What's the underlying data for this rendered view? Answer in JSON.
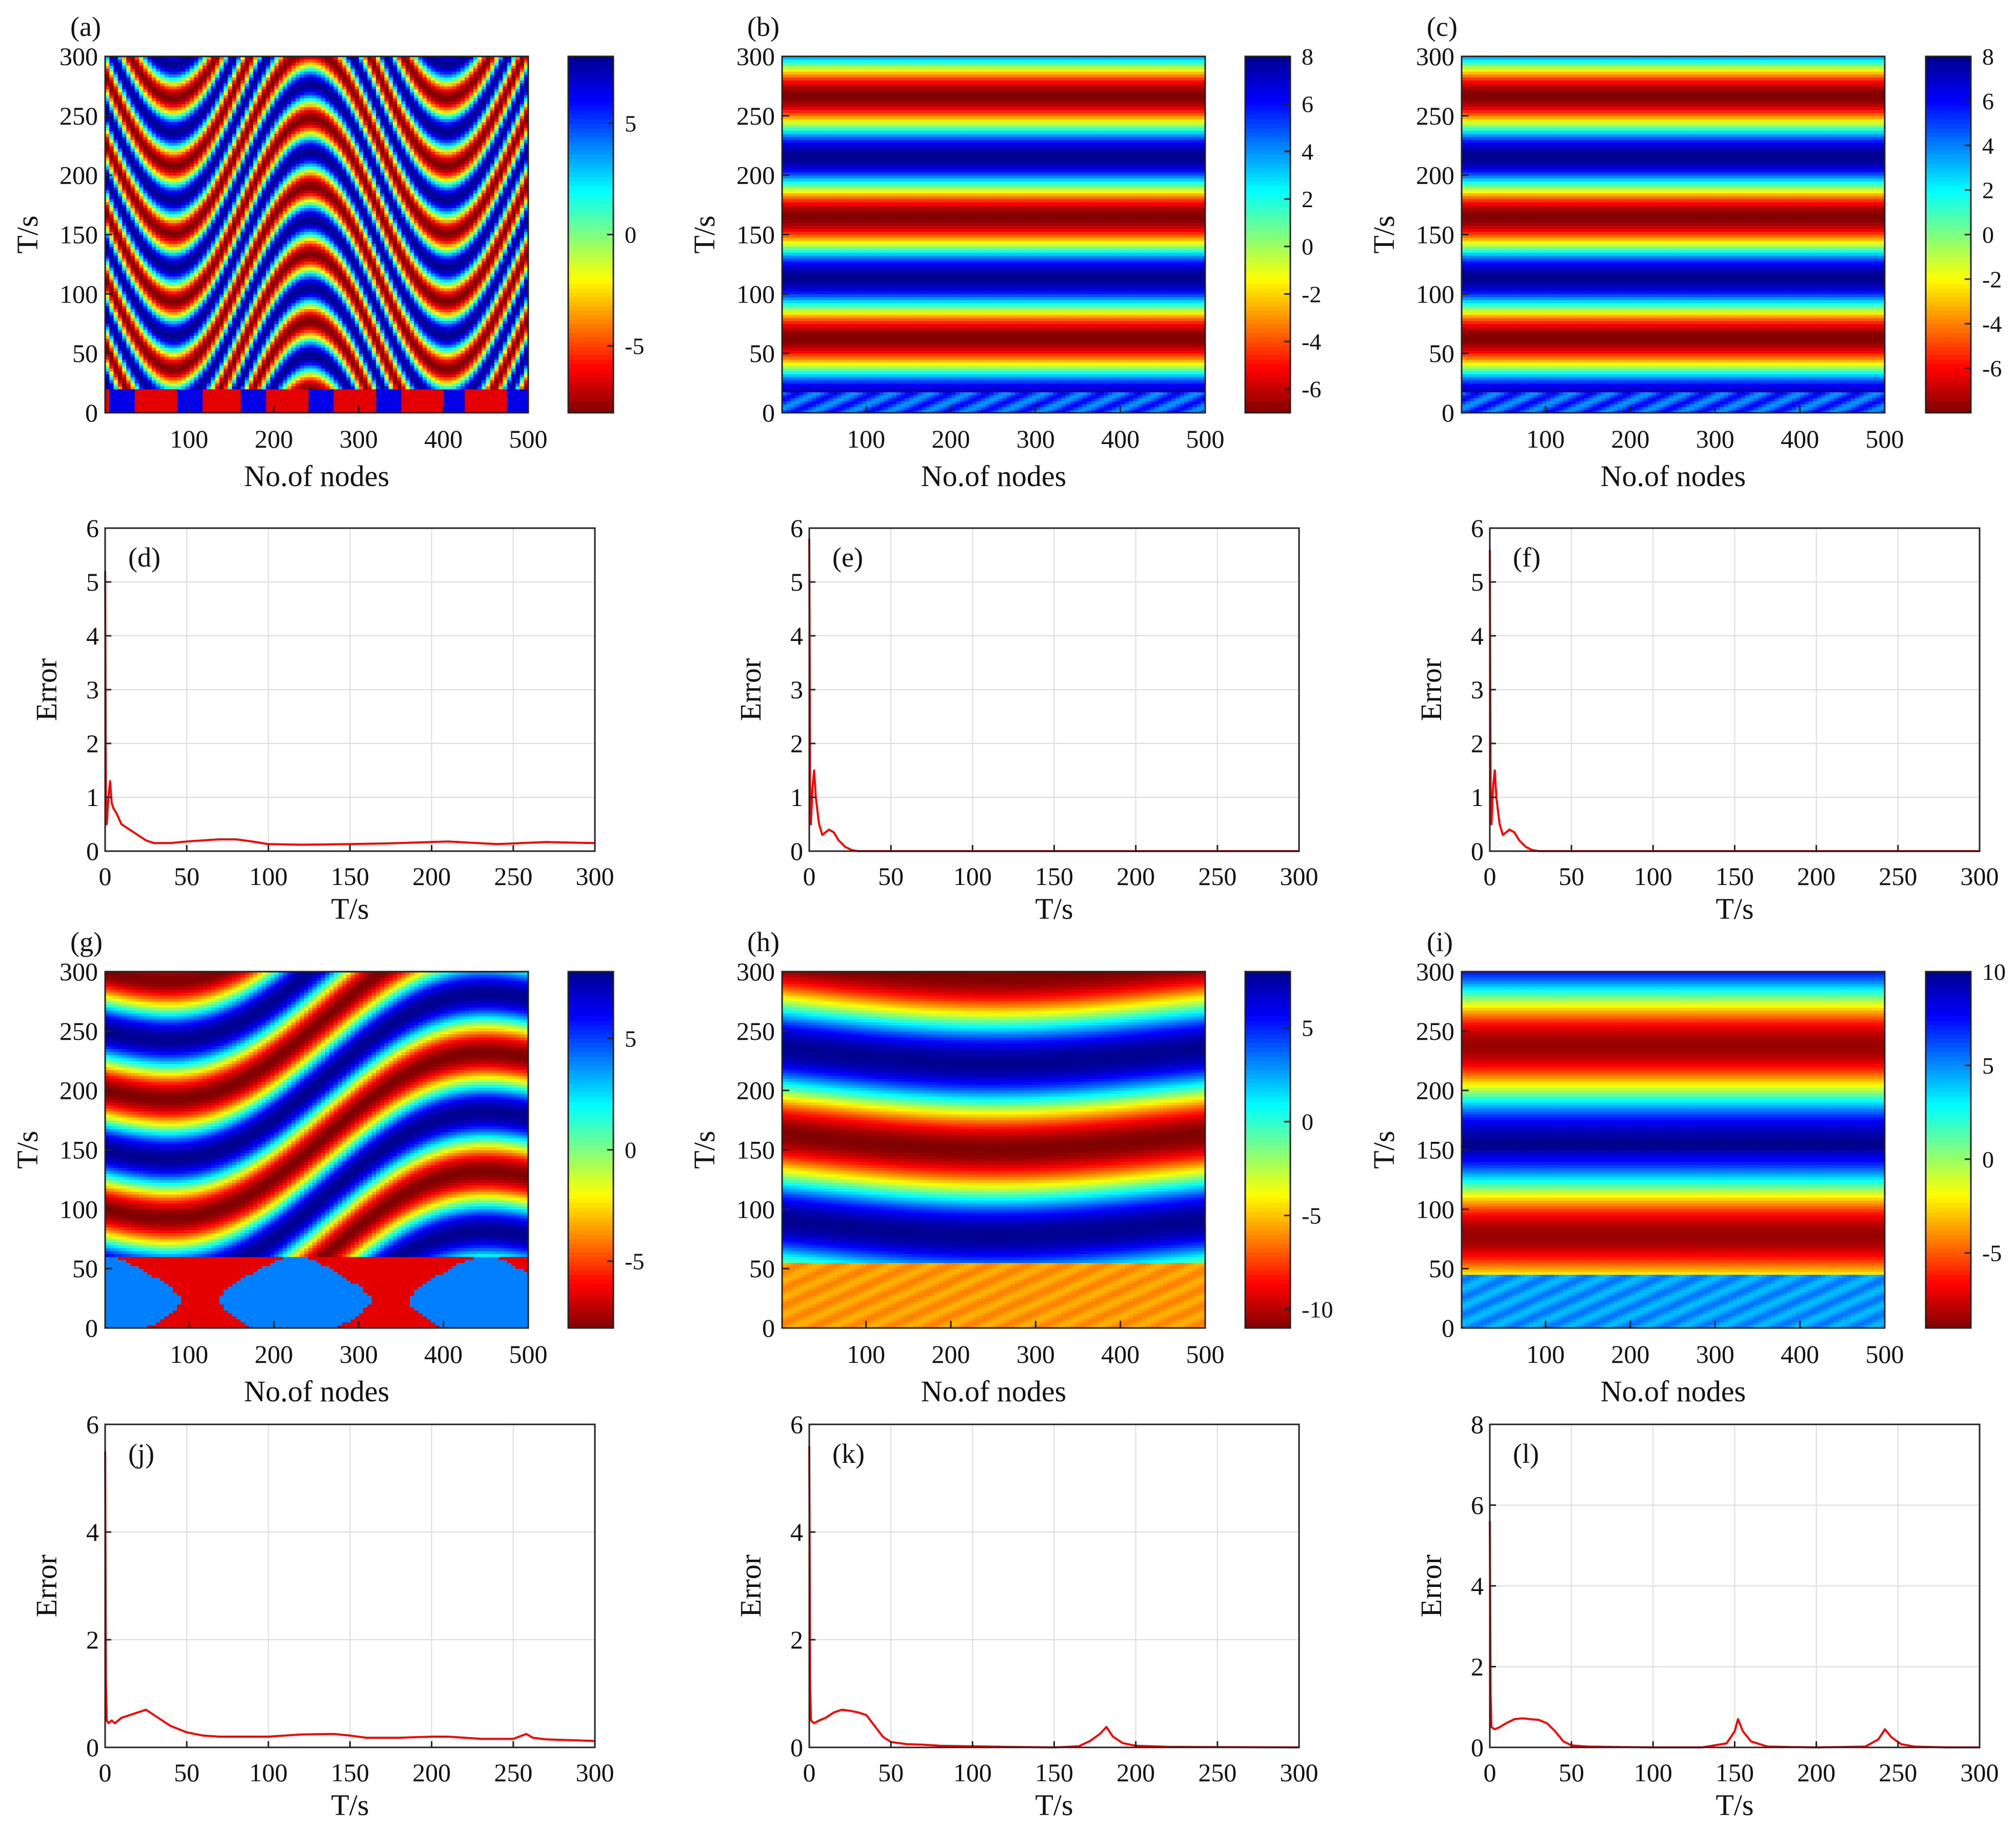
{
  "figure": {
    "heatmap_xlabel": "No.of nodes",
    "heatmap_ylabel": "T/s",
    "error_xlabel": "T/s",
    "error_ylabel": "Error"
  },
  "colors": {
    "error_line": "#ff0000",
    "grid": "#dcdcdc",
    "jet_stops": [
      "#7f0000",
      "#ff0000",
      "#ff8000",
      "#ffff00",
      "#80ff80",
      "#00ffff",
      "#0080ff",
      "#0000ff",
      "#00008f"
    ]
  },
  "chart_data": [
    {
      "id": "a",
      "panel_label": "(a)",
      "type": "heatmap",
      "title": "",
      "xlabel": "No.of nodes",
      "ylabel": "T/s",
      "xlim": [
        1,
        500
      ],
      "ylim": [
        0,
        300
      ],
      "xticks": [
        "100",
        "200",
        "300",
        "400",
        "500"
      ],
      "yticks": [
        "0",
        "50",
        "100",
        "150",
        "200",
        "250",
        "300"
      ],
      "colorbar": {
        "range": [
          -8,
          8
        ],
        "ticks": [
          "-5",
          "0",
          "5"
        ],
        "tick_values": [
          -5,
          0,
          5
        ]
      },
      "pattern": "traveling"
    },
    {
      "id": "b",
      "panel_label": "(b)",
      "type": "heatmap",
      "title": "",
      "xlabel": "No.of nodes",
      "ylabel": "T/s",
      "xlim": [
        1,
        500
      ],
      "ylim": [
        0,
        300
      ],
      "xticks": [
        "100",
        "200",
        "300",
        "400",
        "500"
      ],
      "yticks": [
        "0",
        "50",
        "100",
        "150",
        "200",
        "250",
        "300"
      ],
      "colorbar": {
        "range": [
          -7,
          8
        ],
        "ticks": [
          "-6",
          "-4",
          "-2",
          "0",
          "2",
          "4",
          "6",
          "8"
        ],
        "tick_values": [
          -6,
          -4,
          -2,
          0,
          2,
          4,
          6,
          8
        ]
      },
      "pattern": "synchronized"
    },
    {
      "id": "c",
      "panel_label": "(c)",
      "type": "heatmap",
      "title": "",
      "xlabel": "No.of nodes",
      "ylabel": "T/s",
      "xlim": [
        1,
        500
      ],
      "ylim": [
        0,
        300
      ],
      "xticks": [
        "100",
        "200",
        "300",
        "400",
        "500"
      ],
      "yticks": [
        "0",
        "50",
        "100",
        "150",
        "200",
        "250",
        "300"
      ],
      "colorbar": {
        "range": [
          -8,
          8
        ],
        "ticks": [
          "-6",
          "-4",
          "-2",
          "0",
          "2",
          "4",
          "6",
          "8"
        ],
        "tick_values": [
          -6,
          -4,
          -2,
          0,
          2,
          4,
          6,
          8
        ]
      },
      "pattern": "synchronized"
    },
    {
      "id": "d",
      "panel_label": "(d)",
      "type": "line",
      "title": "",
      "xlabel": "T/s",
      "ylabel": "Error",
      "xlim": [
        0,
        300
      ],
      "ylim": [
        0,
        6
      ],
      "xticks": [
        "0",
        "50",
        "100",
        "150",
        "200",
        "250",
        "300"
      ],
      "yticks": [
        "0",
        "1",
        "2",
        "3",
        "4",
        "5",
        "6"
      ],
      "x": [
        0,
        0.5,
        1,
        2,
        3,
        4,
        5,
        7,
        10,
        15,
        20,
        25,
        30,
        40,
        50,
        60,
        70,
        80,
        90,
        100,
        120,
        150,
        180,
        210,
        240,
        270,
        300
      ],
      "y": [
        5.2,
        1.0,
        0.5,
        1.0,
        1.3,
        0.9,
        0.8,
        0.7,
        0.5,
        0.4,
        0.3,
        0.2,
        0.15,
        0.15,
        0.18,
        0.2,
        0.22,
        0.22,
        0.18,
        0.13,
        0.12,
        0.13,
        0.15,
        0.18,
        0.13,
        0.17,
        0.15
      ]
    },
    {
      "id": "e",
      "panel_label": "(e)",
      "type": "line",
      "title": "",
      "xlabel": "T/s",
      "ylabel": "Error",
      "xlim": [
        0,
        300
      ],
      "ylim": [
        0,
        6
      ],
      "xticks": [
        "0",
        "50",
        "100",
        "150",
        "200",
        "250",
        "300"
      ],
      "yticks": [
        "0",
        "1",
        "2",
        "3",
        "4",
        "5",
        "6"
      ],
      "x": [
        0,
        0.5,
        1,
        2,
        3,
        4,
        6,
        8,
        10,
        12,
        15,
        18,
        22,
        26,
        30,
        40,
        300
      ],
      "y": [
        5.8,
        1.2,
        0.5,
        1.2,
        1.5,
        1.0,
        0.5,
        0.3,
        0.35,
        0.4,
        0.35,
        0.2,
        0.08,
        0.02,
        0.0,
        0.0,
        0.0
      ]
    },
    {
      "id": "f",
      "panel_label": "(f)",
      "type": "line",
      "title": "",
      "xlabel": "T/s",
      "ylabel": "Error",
      "xlim": [
        0,
        300
      ],
      "ylim": [
        0,
        6
      ],
      "xticks": [
        "0",
        "50",
        "100",
        "150",
        "200",
        "250",
        "300"
      ],
      "yticks": [
        "0",
        "1",
        "2",
        "3",
        "4",
        "5",
        "6"
      ],
      "x": [
        0,
        0.5,
        1,
        2,
        3,
        4,
        6,
        8,
        10,
        12,
        15,
        18,
        22,
        26,
        30,
        40,
        300
      ],
      "y": [
        5.6,
        1.2,
        0.5,
        1.2,
        1.5,
        1.0,
        0.5,
        0.3,
        0.35,
        0.4,
        0.35,
        0.2,
        0.08,
        0.02,
        0.0,
        0.0,
        0.0
      ]
    },
    {
      "id": "g",
      "panel_label": "(g)",
      "type": "heatmap",
      "title": "",
      "xlabel": "No.of nodes",
      "ylabel": "T/s",
      "xlim": [
        1,
        500
      ],
      "ylim": [
        0,
        300
      ],
      "xticks": [
        "100",
        "200",
        "300",
        "400",
        "500"
      ],
      "yticks": [
        "0",
        "50",
        "100",
        "150",
        "200",
        "250",
        "300"
      ],
      "colorbar": {
        "range": [
          -8,
          8
        ],
        "ticks": [
          "-5",
          "0",
          "5"
        ],
        "tick_values": [
          -5,
          0,
          5
        ]
      },
      "pattern": "diagonal"
    },
    {
      "id": "h",
      "panel_label": "(h)",
      "type": "heatmap",
      "title": "",
      "xlabel": "No.of nodes",
      "ylabel": "T/s",
      "xlim": [
        1,
        500
      ],
      "ylim": [
        0,
        300
      ],
      "xticks": [
        "100",
        "200",
        "300",
        "400",
        "500"
      ],
      "yticks": [
        "0",
        "50",
        "100",
        "150",
        "200",
        "250",
        "300"
      ],
      "colorbar": {
        "range": [
          -11,
          8
        ],
        "ticks": [
          "-10",
          "-5",
          "0",
          "5"
        ],
        "tick_values": [
          -10,
          -5,
          0,
          5
        ]
      },
      "pattern": "curved"
    },
    {
      "id": "i",
      "panel_label": "(i)",
      "type": "heatmap",
      "title": "",
      "xlabel": "No.of nodes",
      "ylabel": "T/s",
      "xlim": [
        1,
        500
      ],
      "ylim": [
        0,
        300
      ],
      "xticks": [
        "100",
        "200",
        "300",
        "400",
        "500"
      ],
      "yticks": [
        "0",
        "50",
        "100",
        "150",
        "200",
        "250",
        "300"
      ],
      "colorbar": {
        "range": [
          -9,
          10
        ],
        "ticks": [
          "-5",
          "0",
          "5",
          "10"
        ],
        "tick_values": [
          -5,
          0,
          5,
          10
        ]
      },
      "pattern": "bands"
    },
    {
      "id": "j",
      "panel_label": "(j)",
      "type": "line",
      "title": "",
      "xlabel": "T/s",
      "ylabel": "Error",
      "xlim": [
        0,
        300
      ],
      "ylim": [
        0,
        6
      ],
      "xticks": [
        "0",
        "50",
        "100",
        "150",
        "200",
        "250",
        "300"
      ],
      "yticks": [
        "0",
        "2",
        "4",
        "6"
      ],
      "x": [
        0,
        0.5,
        1,
        2,
        4,
        6,
        10,
        15,
        20,
        25,
        30,
        40,
        50,
        60,
        70,
        80,
        100,
        120,
        140,
        150,
        160,
        180,
        200,
        210,
        230,
        250,
        258,
        262,
        270,
        300
      ],
      "y": [
        5.5,
        1.2,
        0.5,
        0.45,
        0.5,
        0.45,
        0.55,
        0.6,
        0.65,
        0.7,
        0.6,
        0.4,
        0.28,
        0.22,
        0.2,
        0.2,
        0.2,
        0.24,
        0.25,
        0.22,
        0.18,
        0.18,
        0.2,
        0.2,
        0.16,
        0.16,
        0.25,
        0.18,
        0.15,
        0.12
      ]
    },
    {
      "id": "k",
      "panel_label": "(k)",
      "type": "line",
      "title": "",
      "xlabel": "T/s",
      "ylabel": "Error",
      "xlim": [
        0,
        300
      ],
      "ylim": [
        0,
        6
      ],
      "xticks": [
        "0",
        "50",
        "100",
        "150",
        "200",
        "250",
        "300"
      ],
      "yticks": [
        "0",
        "2",
        "4",
        "6"
      ],
      "x": [
        0,
        0.5,
        1,
        3,
        6,
        10,
        15,
        20,
        25,
        30,
        35,
        40,
        45,
        50,
        60,
        70,
        80,
        100,
        120,
        150,
        165,
        172,
        178,
        182,
        186,
        192,
        200,
        220,
        300
      ],
      "y": [
        5.6,
        1.3,
        0.5,
        0.45,
        0.5,
        0.55,
        0.65,
        0.7,
        0.68,
        0.65,
        0.6,
        0.4,
        0.2,
        0.1,
        0.06,
        0.05,
        0.03,
        0.02,
        0.01,
        0.0,
        0.02,
        0.12,
        0.25,
        0.38,
        0.2,
        0.08,
        0.03,
        0.01,
        0.0
      ]
    },
    {
      "id": "l",
      "panel_label": "(l)",
      "type": "line",
      "title": "",
      "xlabel": "T/s",
      "ylabel": "Error",
      "xlim": [
        0,
        300
      ],
      "ylim": [
        0,
        8
      ],
      "xticks": [
        "0",
        "50",
        "100",
        "150",
        "200",
        "250",
        "300"
      ],
      "yticks": [
        "0",
        "2",
        "4",
        "6",
        "8"
      ],
      "x": [
        0,
        0.5,
        1,
        3,
        6,
        10,
        15,
        20,
        25,
        30,
        35,
        40,
        45,
        50,
        60,
        80,
        100,
        130,
        145,
        150,
        152,
        155,
        160,
        170,
        200,
        230,
        238,
        242,
        246,
        252,
        260,
        280,
        300
      ],
      "y": [
        5.6,
        1.3,
        0.5,
        0.45,
        0.5,
        0.6,
        0.7,
        0.72,
        0.7,
        0.68,
        0.6,
        0.4,
        0.15,
        0.05,
        0.02,
        0.01,
        0.0,
        0.0,
        0.1,
        0.4,
        0.7,
        0.4,
        0.15,
        0.02,
        0.0,
        0.02,
        0.2,
        0.45,
        0.25,
        0.08,
        0.02,
        0.0,
        0.0
      ]
    }
  ]
}
